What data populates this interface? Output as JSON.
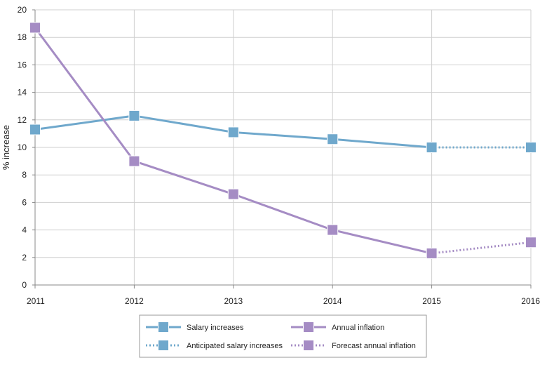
{
  "chart_data": {
    "type": "line",
    "title": "",
    "xlabel": "",
    "ylabel": "% increase",
    "x": [
      "2011",
      "2012",
      "2013",
      "2014",
      "2015",
      "2016"
    ],
    "ylim": [
      0,
      20
    ],
    "yticks": [
      "0",
      "2",
      "4",
      "6",
      "8",
      "10",
      "12",
      "14",
      "16",
      "18",
      "20"
    ],
    "grid": "vertical and horizontal",
    "legend_position": "bottom-center",
    "series": [
      {
        "name": "Salary increases",
        "color": "#6fa8cc",
        "style": "solid",
        "marker": "square",
        "points": [
          {
            "x": "2011",
            "y": 11.3
          },
          {
            "x": "2012",
            "y": 12.3
          },
          {
            "x": "2013",
            "y": 11.1
          },
          {
            "x": "2014",
            "y": 10.6
          },
          {
            "x": "2015",
            "y": 10.0
          }
        ]
      },
      {
        "name": "Anticipated salary increases",
        "color": "#6fa8cc",
        "style": "dotted",
        "marker": "square",
        "points": [
          {
            "x": "2015",
            "y": 10.0
          },
          {
            "x": "2016",
            "y": 10.0
          }
        ]
      },
      {
        "name": "Annual inflation",
        "color": "#a58cc4",
        "style": "solid",
        "marker": "square",
        "points": [
          {
            "x": "2011",
            "y": 18.7
          },
          {
            "x": "2012",
            "y": 9.0
          },
          {
            "x": "2013",
            "y": 6.6
          },
          {
            "x": "2014",
            "y": 4.0
          },
          {
            "x": "2015",
            "y": 2.3
          }
        ]
      },
      {
        "name": "Forecast annual inflation",
        "color": "#a58cc4",
        "style": "dotted",
        "marker": "square",
        "points": [
          {
            "x": "2015",
            "y": 2.3
          },
          {
            "x": "2016",
            "y": 3.1
          }
        ]
      }
    ]
  }
}
